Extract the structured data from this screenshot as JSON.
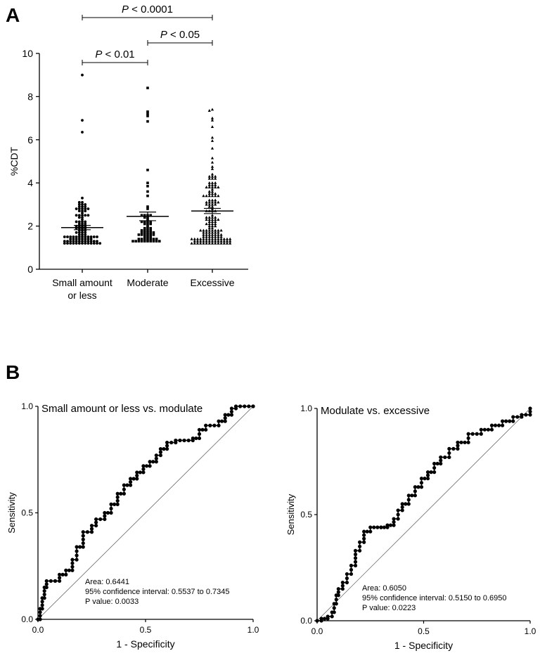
{
  "panels": {
    "a": "A",
    "b": "B"
  },
  "chart_data": [
    {
      "type": "scatter",
      "subtype": "dot-plot",
      "ylabel": "%CDT",
      "ylim": [
        0,
        10
      ],
      "yticks": [
        "0",
        "2",
        "4",
        "6",
        "8",
        "10"
      ],
      "categories": [
        {
          "lines": [
            "Small amount",
            "or less"
          ],
          "marker": "circle",
          "mean": 1.93,
          "sem": 0.1,
          "outliers": [
            9.0,
            6.9,
            6.35,
            3.3
          ],
          "bulk": [
            1.2,
            3.1
          ]
        },
        {
          "lines": [
            "Moderate"
          ],
          "marker": "square",
          "mean": 2.45,
          "sem": 0.2,
          "outliers": [
            8.4,
            7.3,
            7.2,
            7.1,
            6.85,
            4.6,
            4.0,
            3.85,
            3.6,
            3.4
          ],
          "bulk": [
            1.3,
            3.0
          ]
        },
        {
          "lines": [
            "Excessive"
          ],
          "marker": "triangle",
          "mean": 2.7,
          "sem": 0.12,
          "outliers": [
            7.4,
            7.35,
            7.0,
            6.9,
            6.6,
            6.1,
            5.95,
            5.6,
            5.15,
            4.95,
            4.75,
            4.65
          ],
          "bulk": [
            1.2,
            4.5
          ]
        }
      ],
      "comparisons": [
        {
          "pre": "P",
          "post": " < 0.0001",
          "from": 0,
          "to": 2,
          "level": 2
        },
        {
          "pre": "P",
          "post": " < 0.05",
          "from": 1,
          "to": 2,
          "level": 1
        },
        {
          "pre": "P",
          "post": " < 0.01",
          "from": 0,
          "to": 1,
          "level": 0
        }
      ]
    },
    {
      "type": "line",
      "subtype": "roc",
      "title": "Small amount or less vs. modulate",
      "xlabel": "1 - Specificity",
      "ylabel": "Sensitivity",
      "xlim": [
        0,
        1
      ],
      "ylim": [
        0,
        1
      ],
      "ticks": [
        "0.0",
        "0.5",
        "1.0"
      ],
      "curve": [
        [
          0,
          0
        ],
        [
          0.01,
          0.05
        ],
        [
          0.02,
          0.1
        ],
        [
          0.03,
          0.15
        ],
        [
          0.04,
          0.18
        ],
        [
          0.08,
          0.18
        ],
        [
          0.1,
          0.21
        ],
        [
          0.13,
          0.23
        ],
        [
          0.16,
          0.28
        ],
        [
          0.18,
          0.34
        ],
        [
          0.21,
          0.41
        ],
        [
          0.25,
          0.44
        ],
        [
          0.27,
          0.47
        ],
        [
          0.31,
          0.5
        ],
        [
          0.34,
          0.54
        ],
        [
          0.37,
          0.59
        ],
        [
          0.4,
          0.63
        ],
        [
          0.43,
          0.66
        ],
        [
          0.46,
          0.69
        ],
        [
          0.49,
          0.72
        ],
        [
          0.52,
          0.74
        ],
        [
          0.55,
          0.77
        ],
        [
          0.57,
          0.8
        ],
        [
          0.6,
          0.83
        ],
        [
          0.64,
          0.84
        ],
        [
          0.72,
          0.85
        ],
        [
          0.75,
          0.89
        ],
        [
          0.78,
          0.91
        ],
        [
          0.84,
          0.93
        ],
        [
          0.87,
          0.96
        ],
        [
          0.9,
          0.99
        ],
        [
          0.92,
          1.0
        ],
        [
          1.0,
          1.0
        ]
      ],
      "stats": [
        "Area: 0.6441",
        "95% confidence interval: 0.5537 to 0.7345",
        "P value: 0.0033"
      ]
    },
    {
      "type": "line",
      "subtype": "roc",
      "title": "Modulate vs. excessive",
      "xlabel": "1 - Specificity",
      "ylabel": "Sensitivity",
      "xlim": [
        0,
        1
      ],
      "ylim": [
        0,
        1
      ],
      "ticks": [
        "0.0",
        "0.5",
        "1.0"
      ],
      "curve": [
        [
          0,
          0
        ],
        [
          0.02,
          0.01
        ],
        [
          0.05,
          0.02
        ],
        [
          0.07,
          0.04
        ],
        [
          0.08,
          0.08
        ],
        [
          0.09,
          0.12
        ],
        [
          0.1,
          0.15
        ],
        [
          0.12,
          0.18
        ],
        [
          0.14,
          0.22
        ],
        [
          0.16,
          0.26
        ],
        [
          0.18,
          0.33
        ],
        [
          0.2,
          0.37
        ],
        [
          0.22,
          0.42
        ],
        [
          0.25,
          0.44
        ],
        [
          0.3,
          0.44
        ],
        [
          0.33,
          0.45
        ],
        [
          0.36,
          0.48
        ],
        [
          0.38,
          0.52
        ],
        [
          0.4,
          0.55
        ],
        [
          0.43,
          0.59
        ],
        [
          0.46,
          0.63
        ],
        [
          0.49,
          0.67
        ],
        [
          0.52,
          0.7
        ],
        [
          0.55,
          0.74
        ],
        [
          0.58,
          0.77
        ],
        [
          0.62,
          0.81
        ],
        [
          0.66,
          0.84
        ],
        [
          0.71,
          0.88
        ],
        [
          0.77,
          0.9
        ],
        [
          0.82,
          0.92
        ],
        [
          0.87,
          0.94
        ],
        [
          0.92,
          0.96
        ],
        [
          0.96,
          0.97
        ],
        [
          1.0,
          1.0
        ]
      ],
      "stats": [
        "Area: 0.6050",
        "95% confidence interval: 0.5150 to 0.6950",
        "P value: 0.0223"
      ]
    }
  ]
}
